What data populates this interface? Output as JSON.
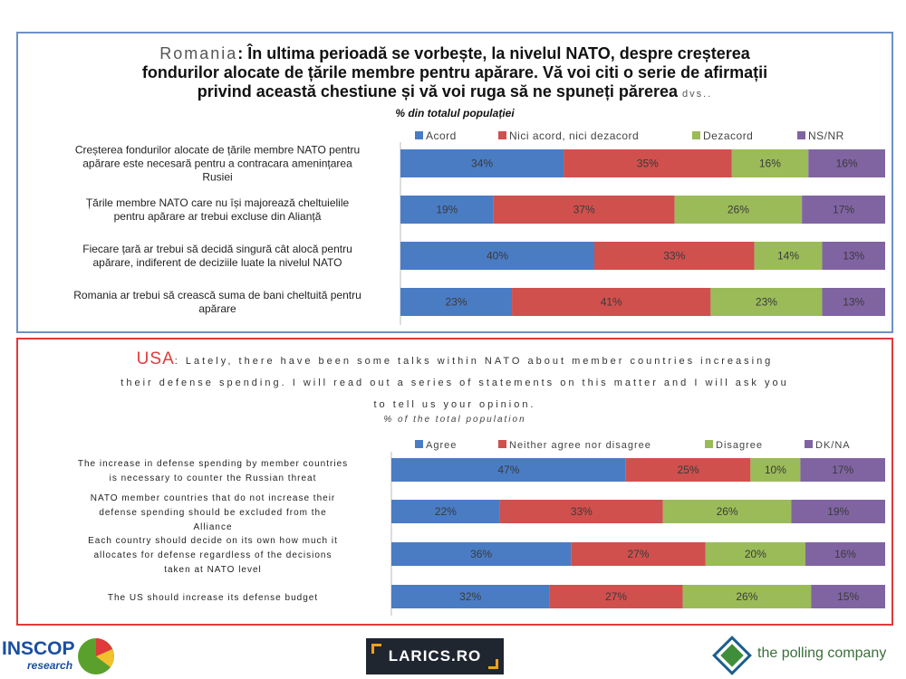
{
  "charts": {
    "ro": {
      "country": "Romania",
      "question": "În ultima perioadă se vorbește, la nivelul NATO, despre creșterea fondurilor alocate de țările membre pentru apărare. Vă voi citi o serie de afirmații privind această chestiune și vă voi ruga să ne spuneți părerea",
      "question_tail": "dvs..",
      "subtitle": "% din totalul populației"
    },
    "us": {
      "country": "USA",
      "question": "Lately, there have been some talks within NATO about member countries increasing their defense spending. I will read out a series of statements on this matter and I will ask you to tell us your opinion.",
      "subtitle": "% of the total population"
    }
  },
  "chart_data": [
    {
      "type": "bar",
      "orientation": "horizontal",
      "stacked": true,
      "title": "Romania",
      "categories": [
        "Creșterea fondurilor alocate de țările membre NATO pentru apărare este necesară pentru a contracara amenințarea Rusiei",
        "Țările membre NATO care nu își majorează cheltuielile pentru apărare ar trebui excluse din Alianță",
        "Fiecare țară ar trebui să decidă singură cât alocă pentru apărare, indiferent de deciziile luate la nivelul NATO",
        "Romania ar trebui să crească suma de bani cheltuită pentru apărare"
      ],
      "series": [
        {
          "name": "Acord",
          "color": "#4a7cc4",
          "values": [
            34,
            19,
            40,
            23
          ]
        },
        {
          "name": "Nici acord, nici dezacord",
          "color": "#d0504e",
          "values": [
            35,
            37,
            33,
            41
          ]
        },
        {
          "name": "Dezacord",
          "color": "#9bbb59",
          "values": [
            16,
            26,
            14,
            23
          ]
        },
        {
          "name": "NS/NR",
          "color": "#8064a2",
          "values": [
            16,
            17,
            13,
            13
          ]
        }
      ],
      "value_suffix": "%",
      "legend_position": "top",
      "grid": false
    },
    {
      "type": "bar",
      "orientation": "horizontal",
      "stacked": true,
      "title": "USA",
      "categories": [
        "The increase in defense spending by member countries is necessary to counter the Russian threat",
        "NATO member countries that do not increase their defense spending should be excluded from the Alliance",
        "Each country should decide on its own how much it allocates for defense regardless of the decisions taken at NATO level",
        "The US should increase its defense budget"
      ],
      "series": [
        {
          "name": "Agree",
          "color": "#4a7cc4",
          "values": [
            47,
            22,
            36,
            32
          ]
        },
        {
          "name": "Neither agree nor disagree",
          "color": "#d0504e",
          "values": [
            25,
            33,
            27,
            27
          ]
        },
        {
          "name": "Disagree",
          "color": "#9bbb59",
          "values": [
            10,
            26,
            20,
            26
          ]
        },
        {
          "name": "DK/NA",
          "color": "#8064a2",
          "values": [
            17,
            19,
            16,
            15
          ]
        }
      ],
      "value_suffix": "%",
      "legend_position": "top",
      "grid": false
    }
  ],
  "logos": {
    "inscop_line1": "INSCOP",
    "inscop_line2": "research",
    "larics": "LARICS.RO",
    "polling": "the polling company"
  }
}
